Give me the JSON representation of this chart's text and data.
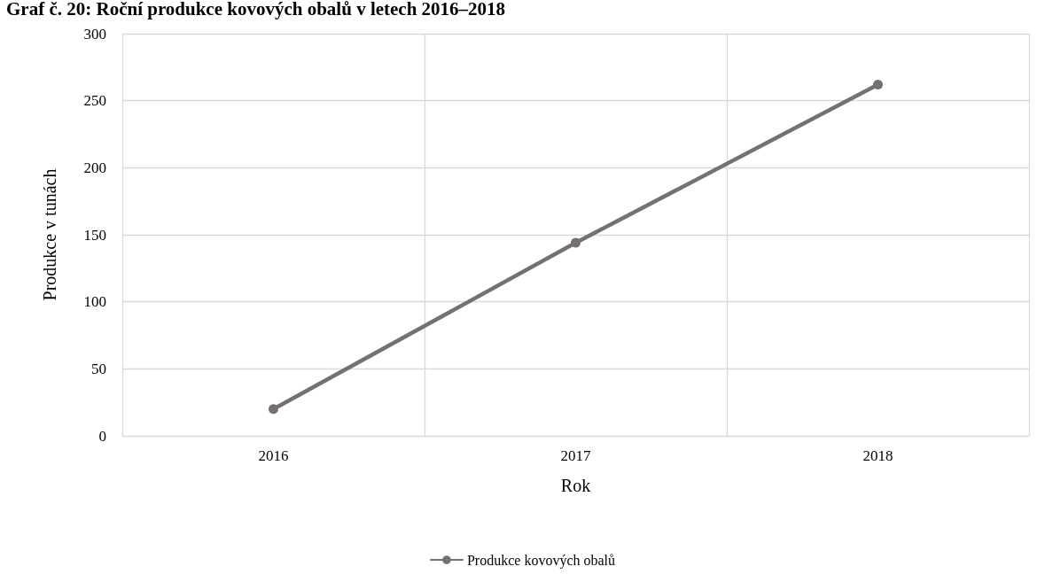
{
  "chart_data": {
    "type": "line",
    "title": "Graf č. 20: Roční produkce kovových obalů v letech 2016–2018",
    "xlabel": "Rok",
    "ylabel": "Produkce v tunách",
    "categories": [
      "2016",
      "2017",
      "2018"
    ],
    "series": [
      {
        "name": "Produkce kovových obalů",
        "color": "#767171",
        "values": [
          20,
          144,
          262
        ]
      }
    ],
    "ylim": [
      0,
      300
    ],
    "yticks": [
      0,
      50,
      100,
      150,
      200,
      250,
      300
    ],
    "grid": true,
    "legend": "bottom",
    "marker": "circle",
    "line_style": "solid"
  }
}
